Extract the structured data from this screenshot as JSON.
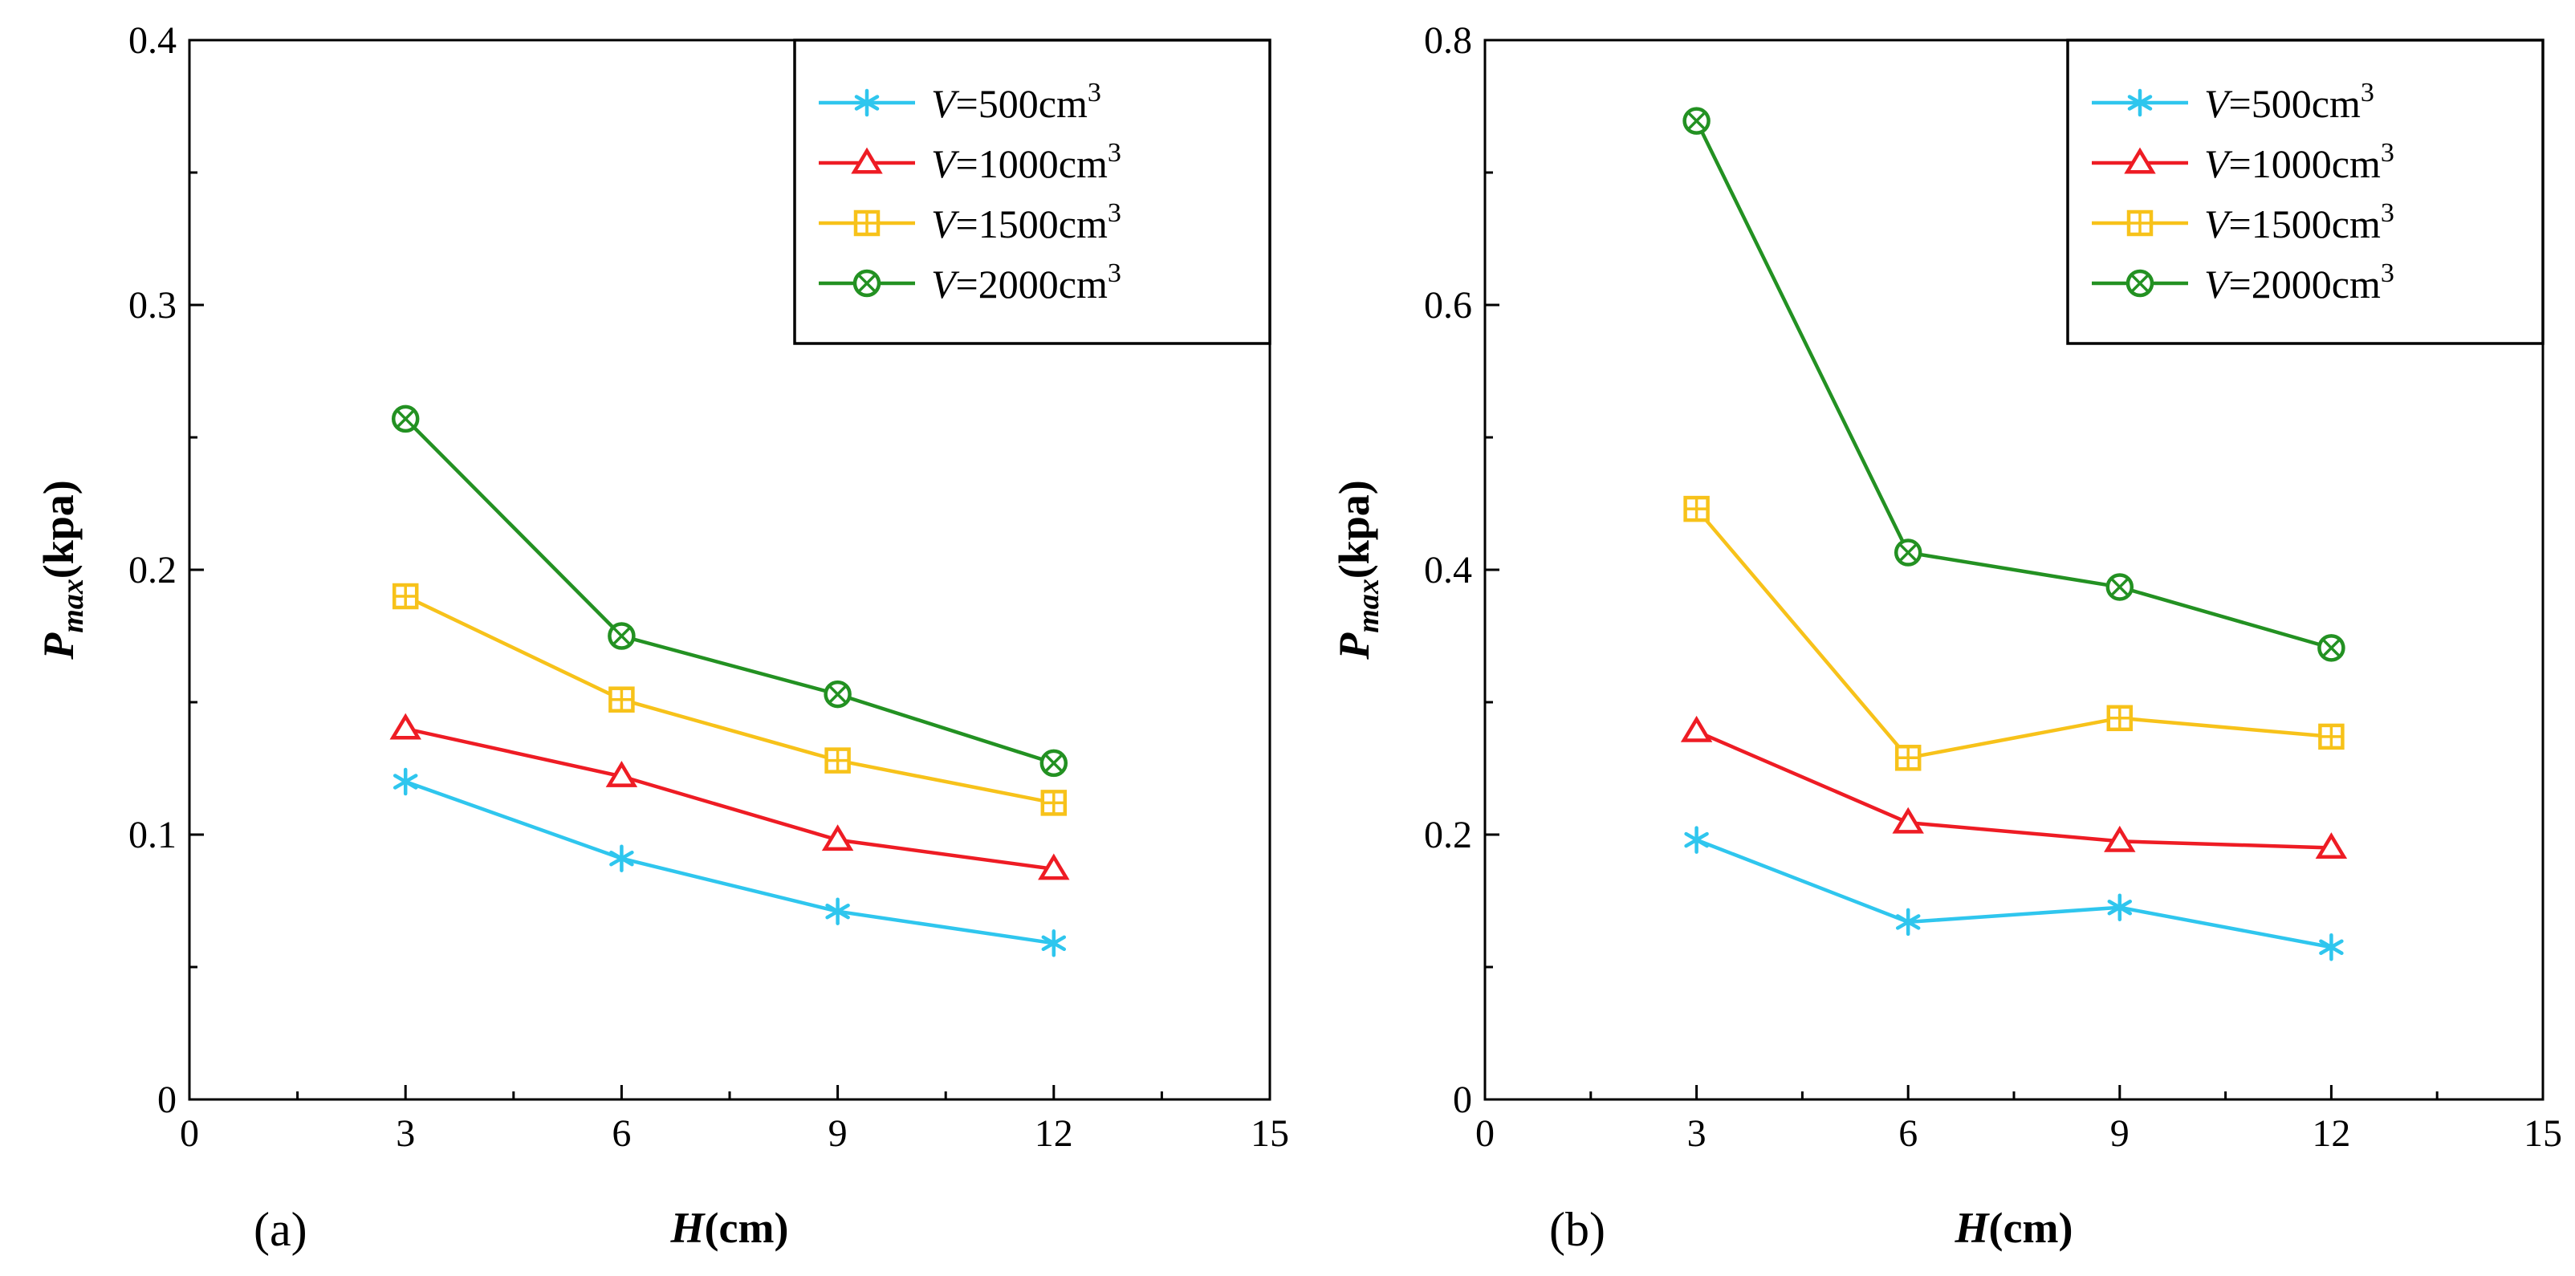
{
  "colors": {
    "V=500": "#2fc6ee",
    "V=1000": "#ee1c24",
    "V=1500": "#f7c21a",
    "V=2000": "#239122"
  },
  "chart_data": [
    {
      "type": "line",
      "panel_label": "(a)",
      "xlabel": {
        "var": "H",
        "unit": "(cm)"
      },
      "ylabel": {
        "var": "P",
        "sub": "max",
        "unit": "(kpa)"
      },
      "xlim": [
        0,
        15
      ],
      "ylim": [
        0,
        0.4
      ],
      "x_ticks": [
        0,
        3,
        6,
        9,
        12,
        15
      ],
      "x_tick_labels": [
        "0",
        "3",
        "6",
        "9",
        "12",
        "15"
      ],
      "y_ticks": [
        0,
        0.1,
        0.2,
        0.3,
        0.4
      ],
      "y_tick_labels": [
        "0",
        "0.1",
        "0.2",
        "0.3",
        "0.4"
      ],
      "legend_position": "top-right",
      "x": [
        3,
        6,
        9,
        12
      ],
      "series": [
        {
          "key": "V=500",
          "var": "V",
          "value": "=500cm",
          "sup": "3",
          "marker": "asterisk",
          "values": [
            0.12,
            0.091,
            0.071,
            0.059
          ]
        },
        {
          "key": "V=1000",
          "var": "V",
          "value": "=1000cm",
          "sup": "3",
          "marker": "triangle",
          "values": [
            0.14,
            0.122,
            0.098,
            0.087
          ]
        },
        {
          "key": "V=1500",
          "var": "V",
          "value": "=1500cm",
          "sup": "3",
          "marker": "square-plus",
          "values": [
            0.19,
            0.151,
            0.128,
            0.112
          ]
        },
        {
          "key": "V=2000",
          "var": "V",
          "value": "=2000cm",
          "sup": "3",
          "marker": "circle-x",
          "values": [
            0.257,
            0.175,
            0.153,
            0.127
          ]
        }
      ]
    },
    {
      "type": "line",
      "panel_label": "(b)",
      "xlabel": {
        "var": "H",
        "unit": "(cm)"
      },
      "ylabel": {
        "var": "P",
        "sub": "max",
        "unit": "(kpa)"
      },
      "xlim": [
        0,
        15
      ],
      "ylim": [
        0,
        0.8
      ],
      "x_ticks": [
        0,
        3,
        6,
        9,
        12,
        15
      ],
      "x_tick_labels": [
        "0",
        "3",
        "6",
        "9",
        "12",
        "15"
      ],
      "y_ticks": [
        0,
        0.2,
        0.4,
        0.6,
        0.8
      ],
      "y_tick_labels": [
        "0",
        "0.2",
        "0.4",
        "0.6",
        "0.8"
      ],
      "legend_position": "top-right",
      "x": [
        3,
        6,
        9,
        12
      ],
      "series": [
        {
          "key": "V=500",
          "var": "V",
          "value": "=500cm",
          "sup": "3",
          "marker": "asterisk",
          "values": [
            0.196,
            0.134,
            0.145,
            0.115
          ]
        },
        {
          "key": "V=1000",
          "var": "V",
          "value": "=1000cm",
          "sup": "3",
          "marker": "triangle",
          "values": [
            0.278,
            0.209,
            0.195,
            0.19
          ]
        },
        {
          "key": "V=1500",
          "var": "V",
          "value": "=1500cm",
          "sup": "3",
          "marker": "square-plus",
          "values": [
            0.446,
            0.258,
            0.288,
            0.274
          ]
        },
        {
          "key": "V=2000",
          "var": "V",
          "value": "=2000cm",
          "sup": "3",
          "marker": "circle-x",
          "values": [
            0.739,
            0.413,
            0.387,
            0.341
          ]
        }
      ]
    }
  ]
}
